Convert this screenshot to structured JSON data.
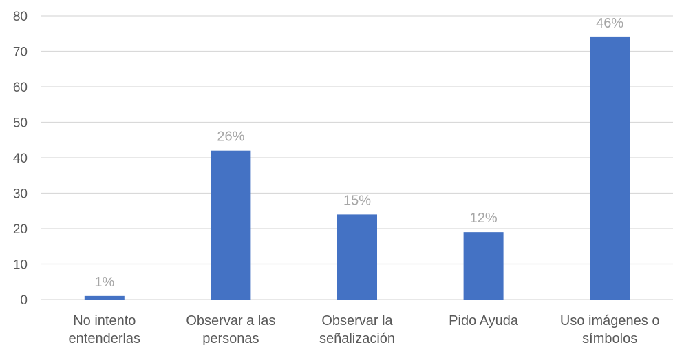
{
  "chart_data": {
    "type": "bar",
    "categories": [
      [
        "No intento",
        "entenderlas"
      ],
      [
        "Observar a las",
        "personas"
      ],
      [
        "Observar la",
        "señalización"
      ],
      [
        "Pido Ayuda"
      ],
      [
        "Uso imágenes o",
        "símbolos"
      ]
    ],
    "values": [
      1,
      42,
      24,
      19,
      74
    ],
    "data_labels": [
      "1%",
      "26%",
      "15%",
      "12%",
      "46%"
    ],
    "ylim": [
      0,
      80
    ],
    "yticks": [
      0,
      10,
      20,
      30,
      40,
      50,
      60,
      70,
      80
    ],
    "grid": true,
    "legend": "none",
    "bar_color": "#4472c4",
    "gridline_color": "#d9d9d9",
    "title": "",
    "xlabel": "",
    "ylabel": ""
  }
}
